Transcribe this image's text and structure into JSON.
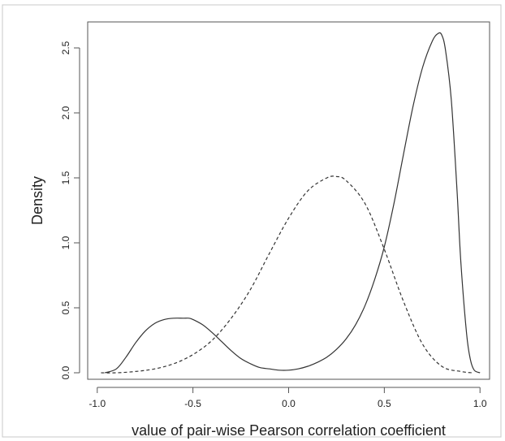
{
  "chart_data": {
    "type": "line",
    "title": "",
    "xlabel": "value of pair-wise Pearson correlation coefficient",
    "ylabel": "Density",
    "xlim": [
      -1.05,
      1.05
    ],
    "ylim": [
      -0.05,
      2.7
    ],
    "x_ticks": [
      -1.0,
      -0.5,
      0.0,
      0.5,
      1.0
    ],
    "x_tick_labels": [
      "-1.0",
      "-0.5",
      "0.0",
      "0.5",
      "1.0"
    ],
    "y_ticks": [
      0.0,
      0.5,
      1.0,
      1.5,
      2.0,
      2.5
    ],
    "y_tick_labels": [
      "0.0",
      "0.5",
      "1.0",
      "1.5",
      "2.0",
      "2.5"
    ],
    "grid": false,
    "legend": "none",
    "series": [
      {
        "style": "solid",
        "color": "#333333",
        "x": [
          -0.96,
          -0.9,
          -0.85,
          -0.8,
          -0.75,
          -0.7,
          -0.65,
          -0.6,
          -0.55,
          -0.52,
          -0.5,
          -0.45,
          -0.4,
          -0.35,
          -0.3,
          -0.25,
          -0.2,
          -0.15,
          -0.1,
          -0.05,
          0.0,
          0.05,
          0.1,
          0.15,
          0.2,
          0.25,
          0.3,
          0.35,
          0.4,
          0.45,
          0.5,
          0.55,
          0.6,
          0.65,
          0.7,
          0.75,
          0.78,
          0.8,
          0.82,
          0.85,
          0.88,
          0.9,
          0.93,
          0.95,
          0.97,
          1.0
        ],
        "y": [
          0.0,
          0.03,
          0.12,
          0.23,
          0.32,
          0.38,
          0.41,
          0.42,
          0.42,
          0.42,
          0.41,
          0.37,
          0.31,
          0.24,
          0.17,
          0.11,
          0.07,
          0.04,
          0.03,
          0.02,
          0.02,
          0.03,
          0.05,
          0.08,
          0.12,
          0.18,
          0.26,
          0.37,
          0.52,
          0.72,
          0.97,
          1.3,
          1.68,
          2.05,
          2.35,
          2.55,
          2.61,
          2.6,
          2.48,
          2.1,
          1.4,
          0.85,
          0.3,
          0.1,
          0.02,
          0.0
        ]
      },
      {
        "style": "dashed",
        "color": "#333333",
        "x": [
          -0.98,
          -0.9,
          -0.8,
          -0.7,
          -0.6,
          -0.5,
          -0.4,
          -0.3,
          -0.2,
          -0.1,
          0.0,
          0.1,
          0.2,
          0.25,
          0.3,
          0.4,
          0.5,
          0.6,
          0.7,
          0.8,
          0.9,
          0.96
        ],
        "y": [
          0.0,
          0.0,
          0.01,
          0.03,
          0.07,
          0.14,
          0.25,
          0.42,
          0.64,
          0.92,
          1.19,
          1.4,
          1.5,
          1.51,
          1.48,
          1.3,
          0.95,
          0.55,
          0.22,
          0.05,
          0.01,
          0.0
        ]
      }
    ]
  }
}
